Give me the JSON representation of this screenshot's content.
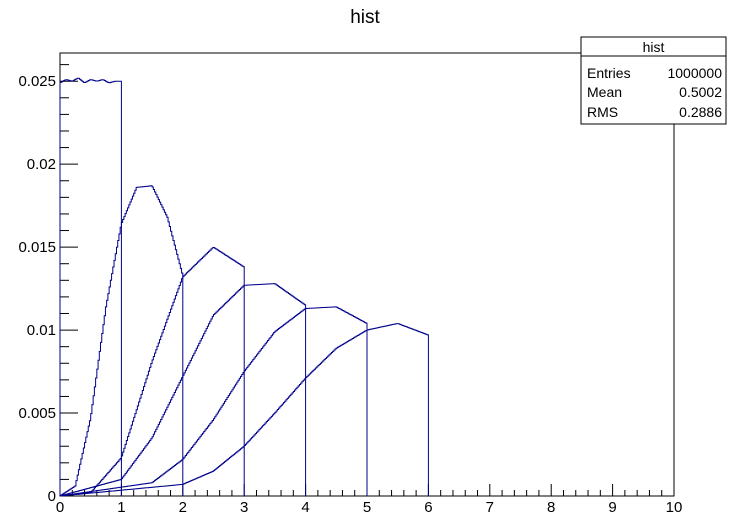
{
  "chart_data": {
    "type": "line",
    "title": "hist",
    "xlabel": "",
    "ylabel": "",
    "xlim": [
      0,
      10
    ],
    "ylim": [
      0,
      0.0267
    ],
    "grid": false,
    "x_ticks": [
      "0",
      "1",
      "2",
      "3",
      "4",
      "5",
      "6",
      "7",
      "8",
      "9",
      "10"
    ],
    "y_ticks": [
      {
        "value": 0,
        "label": "0"
      },
      {
        "value": 0.005,
        "label": "0.005"
      },
      {
        "value": 0.01,
        "label": "0.01"
      },
      {
        "value": 0.015,
        "label": "0.015"
      },
      {
        "value": 0.02,
        "label": "0.02"
      },
      {
        "value": 0.025,
        "label": "0.025"
      }
    ],
    "line_color": "#00008B",
    "series": [
      {
        "range": [
          0,
          1
        ],
        "x": [
          0,
          0.1,
          0.2,
          0.3,
          0.4,
          0.5,
          0.6,
          0.7,
          0.8,
          0.9,
          1.0
        ],
        "values": [
          0.0249,
          0.0251,
          0.025,
          0.0252,
          0.0249,
          0.0251,
          0.025,
          0.0251,
          0.0249,
          0.025,
          0.025
        ]
      },
      {
        "range": [
          0,
          2
        ],
        "x": [
          0,
          0.25,
          0.5,
          0.75,
          1.0,
          1.25,
          1.5,
          1.75,
          2.0
        ],
        "values": [
          0,
          0.0006,
          0.0047,
          0.0114,
          0.0164,
          0.0186,
          0.0187,
          0.0168,
          0.0133
        ]
      },
      {
        "range": [
          0,
          3
        ],
        "x": [
          0,
          0.5,
          1.0,
          1.5,
          2.0,
          2.5,
          3.0
        ],
        "values": [
          0,
          0.0002,
          0.0023,
          0.0081,
          0.0132,
          0.015,
          0.0138
        ]
      },
      {
        "range": [
          0,
          4
        ],
        "x": [
          0,
          1.0,
          1.5,
          2.0,
          2.5,
          3.0,
          3.5,
          4.0
        ],
        "values": [
          0,
          0.001,
          0.0035,
          0.0072,
          0.0109,
          0.0127,
          0.0128,
          0.0115
        ]
      },
      {
        "range": [
          0,
          5
        ],
        "x": [
          0,
          1.5,
          2.0,
          2.5,
          3.0,
          3.5,
          4.0,
          4.5,
          5.0
        ],
        "values": [
          0,
          0.0008,
          0.0022,
          0.0046,
          0.0075,
          0.0099,
          0.0113,
          0.0114,
          0.0104
        ]
      },
      {
        "range": [
          0,
          6
        ],
        "x": [
          0,
          2.0,
          2.5,
          3.0,
          3.5,
          4.0,
          4.5,
          5.0,
          5.5,
          6.0
        ],
        "values": [
          0,
          0.0007,
          0.0015,
          0.003,
          0.005,
          0.0071,
          0.0089,
          0.01,
          0.0104,
          0.0097
        ]
      }
    ]
  },
  "stats_box": {
    "title": "hist",
    "rows": [
      {
        "label": "Entries",
        "value": "1000000"
      },
      {
        "label": "Mean",
        "value": "0.5002"
      },
      {
        "label": "RMS",
        "value": "0.2886"
      }
    ]
  }
}
